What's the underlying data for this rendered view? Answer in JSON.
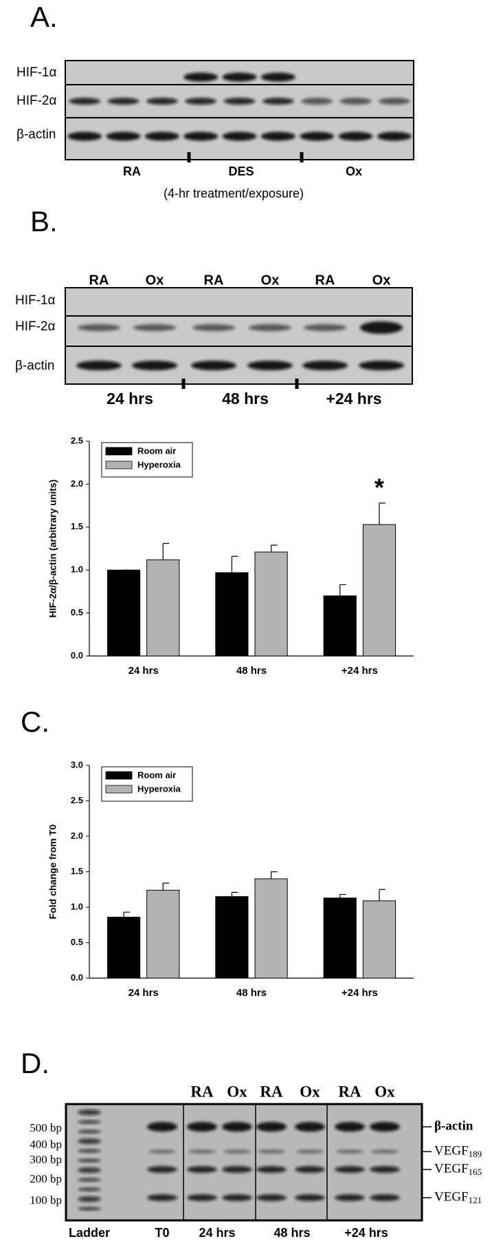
{
  "panels": {
    "a": {
      "label": "A.",
      "rows": [
        "HIF-1α",
        "HIF-2α",
        "β-actin"
      ],
      "groups": [
        "RA",
        "DES",
        "Ox"
      ],
      "caption": "(4-hr treatment/exposure)"
    },
    "b": {
      "label": "B.",
      "lanes": [
        "RA",
        "Ox",
        "RA",
        "Ox",
        "RA",
        "Ox"
      ],
      "rows": [
        "HIF-1α",
        "HIF-2α",
        "β-actin"
      ],
      "groups": [
        "24 hrs",
        "48 hrs",
        "+24 hrs"
      ]
    },
    "c": {
      "label": "C."
    },
    "d": {
      "label": "D.",
      "lanes": [
        "RA",
        "Ox",
        "RA",
        "Ox",
        "RA",
        "Ox"
      ],
      "ladder": [
        "500 bp",
        "400 bp",
        "300 bp",
        "200 bp",
        "100 bp"
      ],
      "bands": [
        {
          "text": "β-actin"
        },
        {
          "text": "VEGF",
          "sub": "189"
        },
        {
          "text": "VEGF",
          "sub": "165"
        },
        {
          "text": "VEGF",
          "sub": "121"
        }
      ],
      "bottom": [
        "Ladder",
        "T0",
        "24 hrs",
        "48 hrs",
        "+24 hrs"
      ]
    }
  },
  "chart_data": [
    {
      "type": "bar",
      "y_label": "HIF-2α/β-actin (arbitrary units)",
      "categories": [
        "24 hrs",
        "48 hrs",
        "+24 hrs"
      ],
      "series": [
        {
          "name": "Room air",
          "color": "#000000",
          "values": [
            1.0,
            0.97,
            0.7
          ],
          "errors": [
            0,
            0.19,
            0.13
          ]
        },
        {
          "name": "Hyperoxia",
          "color": "#b3b3b3",
          "values": [
            1.12,
            1.21,
            1.53
          ],
          "errors": [
            0.19,
            0.08,
            0.25
          ]
        }
      ],
      "ylim": [
        0,
        2.5
      ],
      "yticks": [
        {
          "value": 0,
          "label": "0.0"
        },
        {
          "value": 0.5,
          "label": "0.5"
        },
        {
          "value": 1,
          "label": "1.0"
        },
        {
          "value": 1.5,
          "label": "1.5"
        },
        {
          "value": 2,
          "label": "2.0"
        },
        {
          "value": 2.5,
          "label": "2.5"
        }
      ],
      "legend": "upper left",
      "annotation": "*"
    },
    {
      "type": "bar",
      "y_label": "Fold change from T0",
      "categories": [
        "24 hrs",
        "48 hrs",
        "+24 hrs"
      ],
      "series": [
        {
          "name": "Room air",
          "color": "#000000",
          "values": [
            0.86,
            1.15,
            1.13
          ],
          "errors": [
            0.07,
            0.06,
            0.05
          ]
        },
        {
          "name": "Hyperoxia",
          "color": "#b3b3b3",
          "values": [
            1.24,
            1.4,
            1.09
          ],
          "errors": [
            0.1,
            0.1,
            0.16
          ]
        }
      ],
      "ylim": [
        0,
        3
      ],
      "yticks": [
        {
          "value": 0,
          "label": "0.0"
        },
        {
          "value": 0.5,
          "label": "0.5"
        },
        {
          "value": 1,
          "label": "1.0"
        },
        {
          "value": 1.5,
          "label": "1.5"
        },
        {
          "value": 2,
          "label": "2.0"
        },
        {
          "value": 2.5,
          "label": "2.5"
        },
        {
          "value": 3,
          "label": "3.0"
        }
      ],
      "legend": "upper left"
    }
  ]
}
